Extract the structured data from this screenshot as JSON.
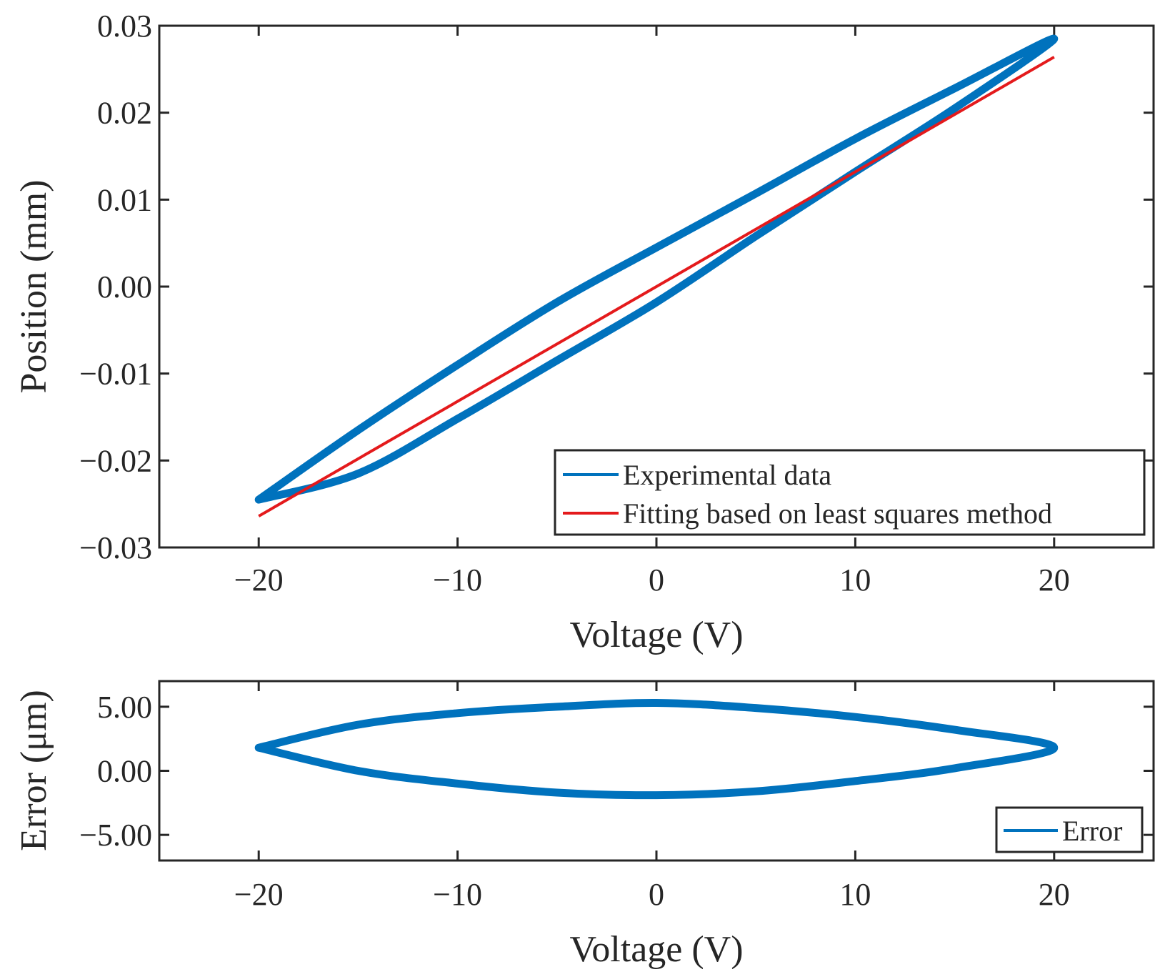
{
  "chart_data": [
    {
      "type": "line",
      "panel": "top",
      "title": "",
      "xlabel": "Voltage (V)",
      "ylabel": "Position (mm)",
      "xlim": [
        -25,
        25
      ],
      "ylim": [
        -0.03,
        0.03
      ],
      "xticks": [
        -20,
        -10,
        0,
        10,
        20
      ],
      "xtick_labels": [
        "−20",
        "−10",
        "0",
        "10",
        "20"
      ],
      "yticks": [
        0.03,
        0.02,
        0.01,
        0.0,
        -0.01,
        -0.02,
        -0.03
      ],
      "ytick_labels": [
        "0.03",
        "0.02",
        "0.01",
        "0.00",
        "−0.01",
        "−0.02",
        "−0.03"
      ],
      "grid": false,
      "legend_location": "bottom-right",
      "series": [
        {
          "name": "Experimental data",
          "color": "#0072BD",
          "x": [
            -20,
            -15,
            -10,
            -5,
            0,
            5,
            10,
            15,
            20,
            15,
            10,
            5,
            0,
            -5,
            -10,
            -15,
            -20
          ],
          "y": [
            -0.0245,
            -0.0165,
            -0.009,
            -0.0018,
            0.0045,
            0.0107,
            0.017,
            0.0228,
            0.0285,
            0.0205,
            0.0132,
            0.0058,
            -0.0018,
            -0.0085,
            -0.0152,
            -0.0215,
            -0.0245
          ]
        },
        {
          "name": "Fitting based on least squares method",
          "color": "#E41A1C",
          "x": [
            -20,
            20
          ],
          "y": [
            -0.0264,
            0.0264
          ]
        }
      ]
    },
    {
      "type": "line",
      "panel": "bottom",
      "title": "",
      "xlabel": "Voltage (V)",
      "ylabel": "Error (μm)",
      "xlim": [
        -25,
        25
      ],
      "ylim": [
        -7,
        7
      ],
      "xticks": [
        -20,
        -10,
        0,
        10,
        20
      ],
      "xtick_labels": [
        "−20",
        "−10",
        "0",
        "10",
        "20"
      ],
      "yticks": [
        5,
        0,
        -5
      ],
      "ytick_labels": [
        "5.00",
        "0.00",
        "−5.00"
      ],
      "grid": false,
      "legend_location": "bottom-right",
      "series": [
        {
          "name": "Error",
          "color": "#0072BD",
          "x": [
            -20,
            -15,
            -10,
            -5,
            0,
            5,
            10,
            15,
            20,
            15,
            10,
            5,
            0,
            -5,
            -10,
            -15,
            -20
          ],
          "y": [
            1.8,
            3.6,
            4.5,
            5.0,
            5.3,
            4.9,
            4.2,
            3.2,
            1.8,
            0.2,
            -0.8,
            -1.6,
            -1.9,
            -1.7,
            -1.0,
            0.0,
            1.8
          ]
        }
      ]
    }
  ]
}
